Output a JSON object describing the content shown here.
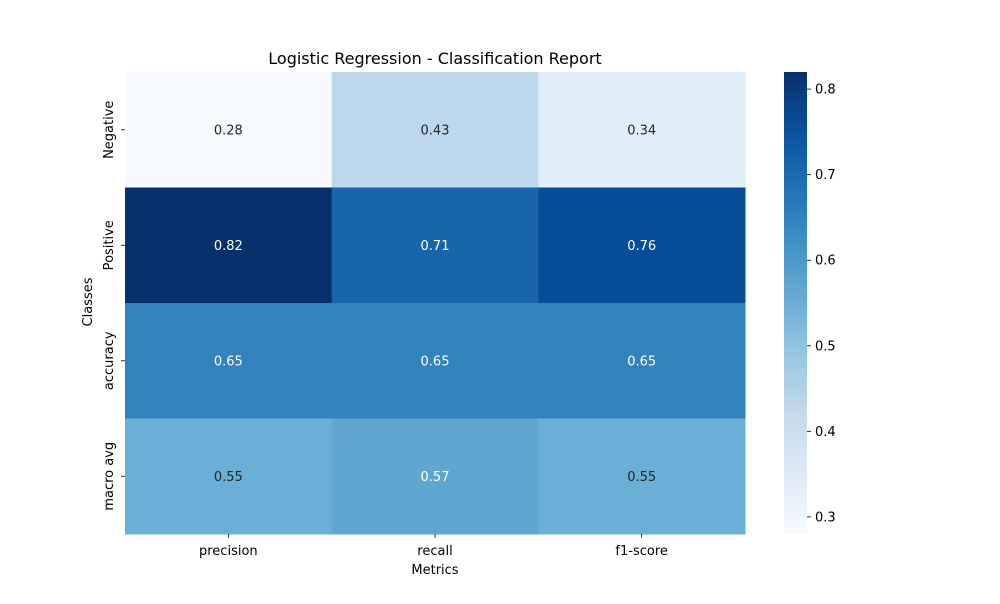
{
  "chart_data": {
    "type": "heatmap",
    "title": "Logistic Regression - Classification Report",
    "xlabel": "Metrics",
    "ylabel": "Classes",
    "x_categories": [
      "precision",
      "recall",
      "f1-score"
    ],
    "y_categories": [
      "Negative",
      "Positive",
      "accuracy",
      "macro avg"
    ],
    "values": [
      [
        0.28,
        0.43,
        0.34
      ],
      [
        0.82,
        0.71,
        0.76
      ],
      [
        0.65,
        0.65,
        0.65
      ],
      [
        0.55,
        0.57,
        0.55
      ]
    ],
    "value_labels": [
      [
        "0.28",
        "0.43",
        "0.34"
      ],
      [
        "0.82",
        "0.71",
        "0.76"
      ],
      [
        "0.65",
        "0.65",
        "0.65"
      ],
      [
        "0.55",
        "0.57",
        "0.55"
      ]
    ],
    "colormap": "Blues",
    "colorbar": {
      "range": [
        0.28,
        0.82
      ],
      "ticks": [
        0.3,
        0.4,
        0.5,
        0.6,
        0.7,
        0.8
      ],
      "tick_labels": [
        "0.3",
        "0.4",
        "0.5",
        "0.6",
        "0.7",
        "0.8"
      ]
    },
    "grid": false,
    "legend": "colorbar-right"
  }
}
